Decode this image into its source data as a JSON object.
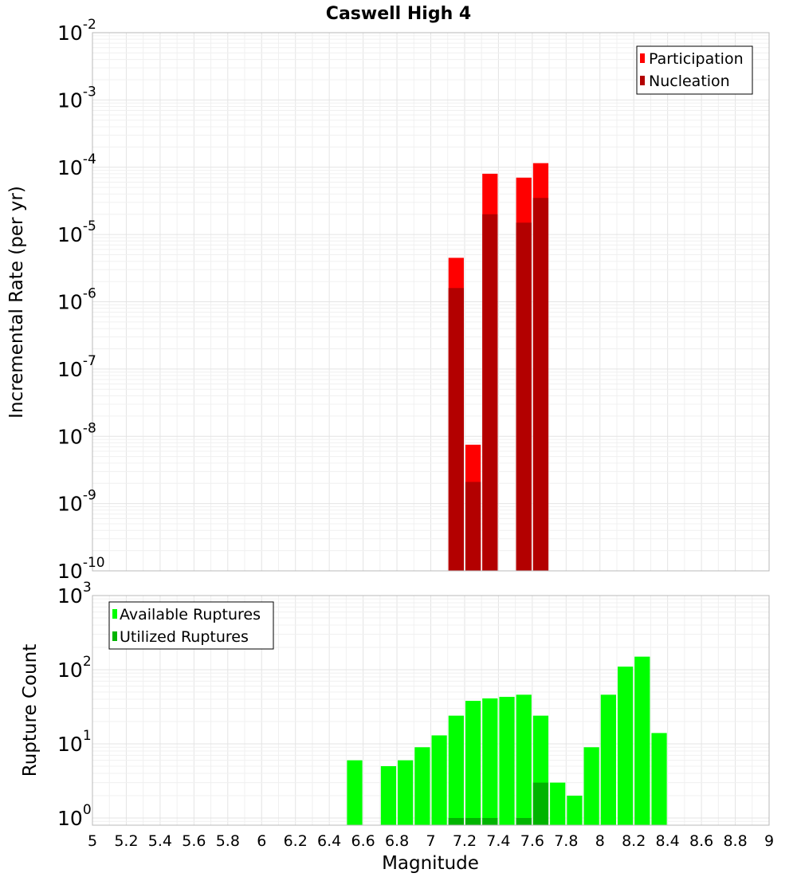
{
  "chart_data": [
    {
      "type": "bar",
      "title": "Caswell High 4",
      "xlabel": "",
      "ylabel": "Incremental Rate (per yr)",
      "yscale": "log",
      "ylim": [
        1e-10,
        0.01
      ],
      "xlim": [
        5,
        9
      ],
      "bin_width": 0.1,
      "y_ticks": [
        {
          "base": "10",
          "exp": "-10"
        },
        {
          "base": "10",
          "exp": "-9"
        },
        {
          "base": "10",
          "exp": "-8"
        },
        {
          "base": "10",
          "exp": "-7"
        },
        {
          "base": "10",
          "exp": "-6"
        },
        {
          "base": "10",
          "exp": "-5"
        },
        {
          "base": "10",
          "exp": "-4"
        },
        {
          "base": "10",
          "exp": "-3"
        },
        {
          "base": "10",
          "exp": "-2"
        }
      ],
      "legend_position": "top-right",
      "grid": true,
      "series": [
        {
          "name": "Participation",
          "color": "#ff0000",
          "points": [
            {
              "x": 7.15,
              "y": 4.5e-06
            },
            {
              "x": 7.25,
              "y": 7.5e-09
            },
            {
              "x": 7.35,
              "y": 8e-05
            },
            {
              "x": 7.55,
              "y": 7e-05
            },
            {
              "x": 7.65,
              "y": 0.000115
            }
          ]
        },
        {
          "name": "Nucleation",
          "color": "#b30000",
          "points": [
            {
              "x": 7.15,
              "y": 1.6e-06
            },
            {
              "x": 7.25,
              "y": 2.1e-09
            },
            {
              "x": 7.35,
              "y": 2e-05
            },
            {
              "x": 7.55,
              "y": 1.5e-05
            },
            {
              "x": 7.65,
              "y": 3.5e-05
            }
          ]
        }
      ]
    },
    {
      "type": "bar",
      "title": "",
      "xlabel": "Magnitude",
      "ylabel": "Rupture Count",
      "yscale": "log",
      "ylim": [
        0.8,
        1000
      ],
      "xlim": [
        5,
        9
      ],
      "bin_width": 0.1,
      "x_ticks": [
        "5",
        "5.2",
        "5.4",
        "5.6",
        "5.8",
        "6",
        "6.2",
        "6.4",
        "6.6",
        "6.8",
        "7",
        "7.2",
        "7.4",
        "7.6",
        "7.8",
        "8",
        "8.2",
        "8.4",
        "8.6",
        "8.8",
        "9"
      ],
      "y_ticks": [
        {
          "base": "10",
          "exp": "0"
        },
        {
          "base": "10",
          "exp": "1"
        },
        {
          "base": "10",
          "exp": "2"
        },
        {
          "base": "10",
          "exp": "3"
        }
      ],
      "legend_position": "top-left",
      "grid": true,
      "series": [
        {
          "name": "Available Ruptures",
          "color": "#00ff00",
          "points": [
            {
              "x": 6.55,
              "y": 6
            },
            {
              "x": 6.75,
              "y": 5
            },
            {
              "x": 6.85,
              "y": 6
            },
            {
              "x": 6.95,
              "y": 9
            },
            {
              "x": 7.05,
              "y": 13
            },
            {
              "x": 7.15,
              "y": 24
            },
            {
              "x": 7.25,
              "y": 38
            },
            {
              "x": 7.35,
              "y": 41
            },
            {
              "x": 7.45,
              "y": 43
            },
            {
              "x": 7.55,
              "y": 46
            },
            {
              "x": 7.65,
              "y": 24
            },
            {
              "x": 7.75,
              "y": 3
            },
            {
              "x": 7.85,
              "y": 2
            },
            {
              "x": 7.95,
              "y": 9
            },
            {
              "x": 8.05,
              "y": 46
            },
            {
              "x": 8.15,
              "y": 110
            },
            {
              "x": 8.25,
              "y": 150
            },
            {
              "x": 8.35,
              "y": 14
            }
          ]
        },
        {
          "name": "Utilized Ruptures",
          "color": "#00b400",
          "points": [
            {
              "x": 7.15,
              "y": 1
            },
            {
              "x": 7.25,
              "y": 1
            },
            {
              "x": 7.35,
              "y": 1
            },
            {
              "x": 7.55,
              "y": 1
            },
            {
              "x": 7.65,
              "y": 3
            }
          ]
        }
      ]
    }
  ]
}
